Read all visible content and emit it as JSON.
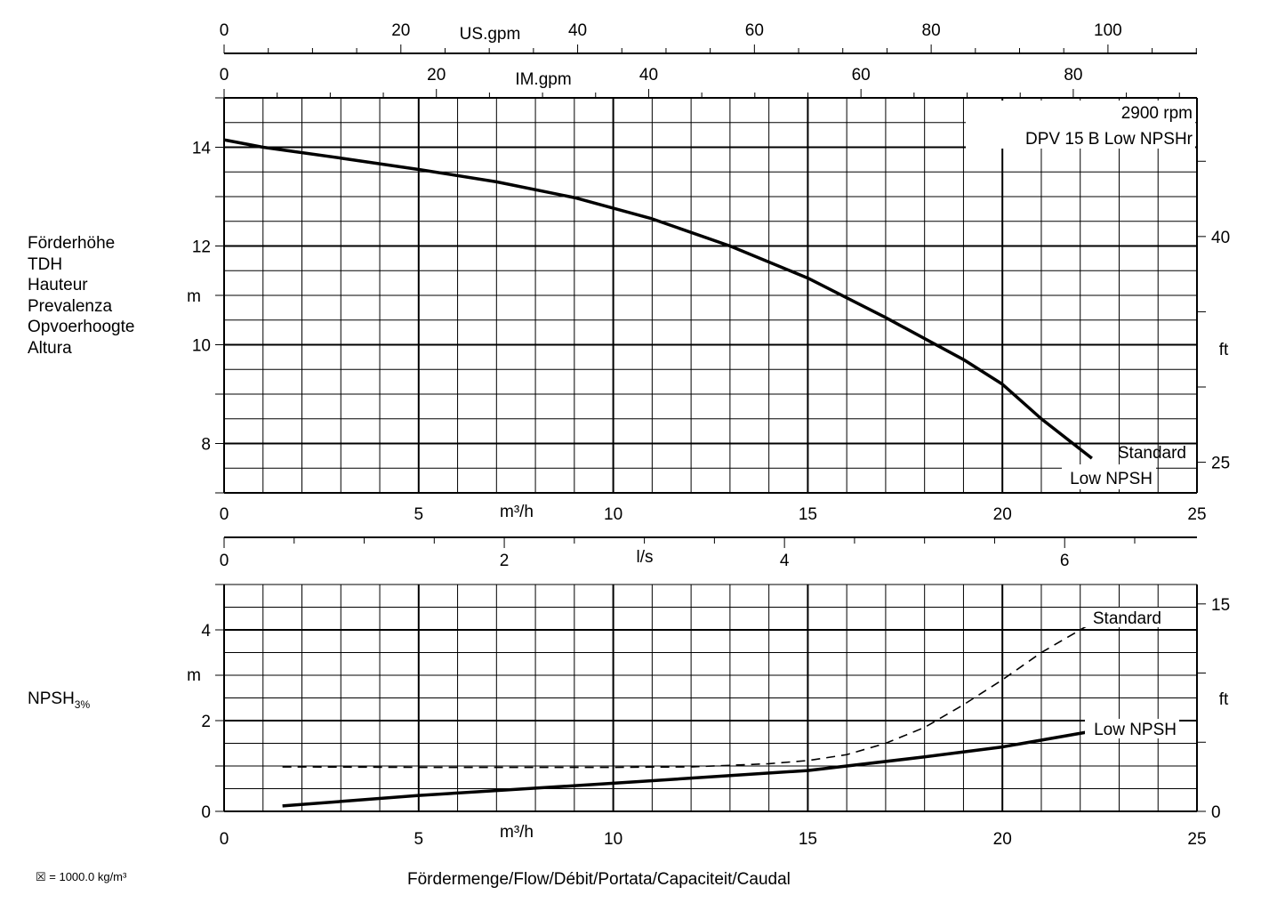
{
  "chart_data": {
    "type": "line",
    "model": "DPV 15 B Low NPSHr",
    "speed": "2900 rpm",
    "density_note": "☒ = 1000.0 kg/m³",
    "flow_caption": "Fördermenge/Flow/Débit/Portata/Capaciteit/Caudal",
    "flow_axis": {
      "unit": "m³/h",
      "range": [
        0,
        25
      ],
      "ticks": [
        "0",
        "5",
        "10",
        "15",
        "20",
        "25"
      ]
    },
    "us_gpm_axis": {
      "unit": "US.gpm",
      "ticks": [
        "0",
        "20",
        "40",
        "60",
        "80",
        "100"
      ]
    },
    "im_gpm_axis": {
      "unit": "IM.gpm",
      "ticks": [
        "0",
        "20",
        "40",
        "60",
        "80"
      ]
    },
    "ls_axis": {
      "unit": "l/s",
      "ticks": [
        "0",
        "2",
        "4",
        "6"
      ]
    },
    "head_chart": {
      "ylabel_lines": [
        "Förderhöhe",
        "TDH",
        "Hauteur",
        "Prevalenza",
        "Opvoerhoogte",
        "Altura"
      ],
      "y_unit": "m",
      "ylim": [
        7,
        15
      ],
      "y_ticks": [
        "8",
        "10",
        "12",
        "14"
      ],
      "right_unit": "ft",
      "right_ticks": [
        "25",
        "40"
      ],
      "grid": true,
      "labels": [
        "Standard",
        "Low NPSH"
      ],
      "series": [
        {
          "x": [
            0,
            1,
            3,
            5,
            7,
            9,
            11,
            13,
            15,
            17,
            19,
            20,
            21,
            22.3
          ],
          "y": [
            14.15,
            14.0,
            13.78,
            13.55,
            13.3,
            12.98,
            12.55,
            12.0,
            11.35,
            10.55,
            9.7,
            9.2,
            8.5,
            7.7
          ]
        }
      ]
    },
    "npsh_chart": {
      "ylabel": "NPSH",
      "ylabel_sub": "3%",
      "y_unit": "m",
      "ylim": [
        0,
        5
      ],
      "y_ticks": [
        "0",
        "2",
        "4"
      ],
      "right_unit": "ft",
      "right_ticks": [
        "0",
        "15"
      ],
      "grid": true,
      "series": [
        {
          "name": "Standard",
          "style": "dashed",
          "x": [
            1.5,
            5,
            10,
            12,
            14,
            15,
            16,
            17,
            18,
            19,
            20,
            21,
            22.2
          ],
          "y": [
            0.98,
            0.97,
            0.97,
            0.98,
            1.05,
            1.12,
            1.25,
            1.5,
            1.85,
            2.35,
            2.9,
            3.5,
            4.1
          ]
        },
        {
          "name": "Low NPSH",
          "style": "solid",
          "x": [
            1.5,
            5,
            10,
            15,
            18,
            20,
            22.2
          ],
          "y": [
            0.12,
            0.35,
            0.62,
            0.9,
            1.2,
            1.42,
            1.75
          ]
        }
      ]
    }
  }
}
